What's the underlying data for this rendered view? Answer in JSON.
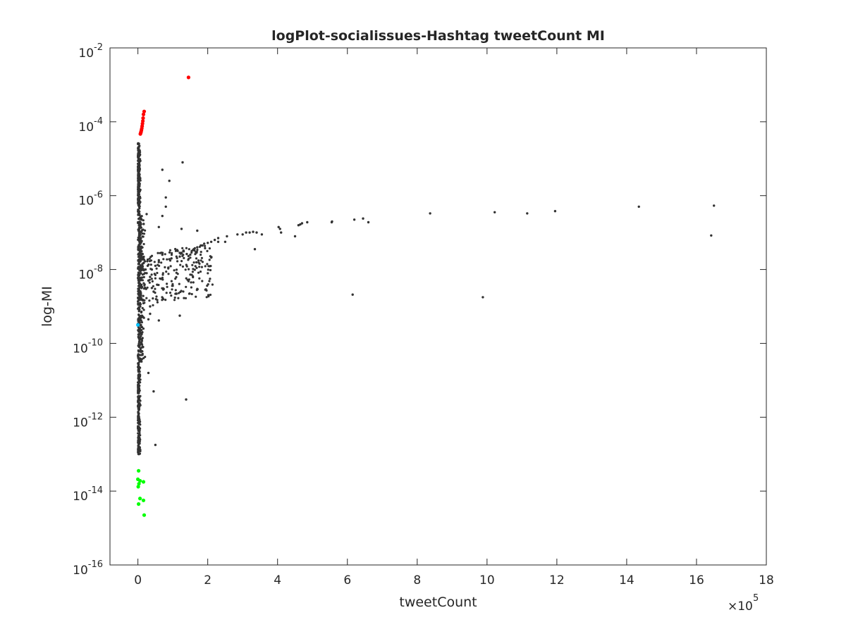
{
  "chart_data": {
    "type": "scatter",
    "title": "logPlot-socialissues-Hashtag tweetCount MI",
    "xlabel": "tweetCount",
    "ylabel": "log-MI",
    "x_multiplier_base": "×10",
    "x_multiplier_exponent": "5",
    "x_scale": "linear",
    "y_scale": "log",
    "xlim": [
      -0.8,
      18
    ],
    "ylim_exponent": [
      -16,
      -2
    ],
    "x_ticks": [
      {
        "value": 0,
        "label": "0"
      },
      {
        "value": 2,
        "label": "2"
      },
      {
        "value": 4,
        "label": "4"
      },
      {
        "value": 6,
        "label": "6"
      },
      {
        "value": 8,
        "label": "8"
      },
      {
        "value": 10,
        "label": "10"
      },
      {
        "value": 12,
        "label": "12"
      },
      {
        "value": 14,
        "label": "14"
      },
      {
        "value": 16,
        "label": "16"
      },
      {
        "value": 18,
        "label": "18"
      }
    ],
    "y_ticks": [
      {
        "exp": -2,
        "base": "10",
        "sup": "-2"
      },
      {
        "exp": -4,
        "base": "10",
        "sup": "-4"
      },
      {
        "exp": -6,
        "base": "10",
        "sup": "-6"
      },
      {
        "exp": -8,
        "base": "10",
        "sup": "-8"
      },
      {
        "exp": -10,
        "base": "10",
        "sup": "-10"
      },
      {
        "exp": -12,
        "base": "10",
        "sup": "-12"
      },
      {
        "exp": -14,
        "base": "10",
        "sup": "-14"
      },
      {
        "exp": -16,
        "base": "10",
        "sup": "-16"
      }
    ],
    "grid": false,
    "legend": "none",
    "series_colors": {
      "top": "#ff0000",
      "bottom": "#00ff00",
      "marker": "#00bfff",
      "rest": "#333333"
    },
    "series": [
      {
        "color": "#ff0000",
        "x": [
          1.45,
          0.18,
          0.16,
          0.15,
          0.14,
          0.13,
          0.12,
          0.11,
          0.1,
          0.09,
          0.08,
          0.07
        ],
        "y_exp": [
          -2.8,
          -3.72,
          -3.8,
          -3.9,
          -3.98,
          -4.05,
          -4.12,
          -4.18,
          -4.23,
          -4.27,
          -4.3,
          -4.33
        ]
      },
      {
        "color": "#00ff00",
        "x": [
          0.02,
          0.0,
          0.06,
          0.16,
          0.03,
          0.01,
          0.06,
          0.16,
          0.02,
          0.18
        ],
        "y_exp": [
          -13.45,
          -13.68,
          -13.72,
          -13.75,
          -13.8,
          -13.88,
          -14.2,
          -14.25,
          -14.35,
          -14.65
        ]
      },
      {
        "color": "#00bfff",
        "x": [
          0.0
        ],
        "y_exp": [
          -9.5
        ]
      },
      {
        "color": "#333333",
        "x": [
          1.28,
          0.9,
          0.7,
          0.8,
          8.37,
          10.22,
          11.15,
          11.95,
          14.35,
          16.5,
          16.42,
          9.88,
          6.15,
          6.6,
          6.45,
          6.2,
          5.55,
          5.56,
          4.85,
          4.7,
          4.65,
          4.6,
          4.5,
          4.07,
          4.03,
          4.1,
          3.55,
          3.4,
          3.3,
          3.2,
          3.1,
          3.0,
          2.85,
          3.35,
          2.5,
          2.55,
          2.3,
          2.3,
          2.2,
          2.1,
          2.0,
          1.9,
          1.8,
          1.7,
          1.6,
          1.3,
          1.2,
          1.25,
          1.5,
          1.4,
          1.2,
          0.96,
          0.9,
          0.6,
          0.6,
          1.25,
          1.7,
          1.85,
          1.2,
          0.6,
          1.38,
          0.45,
          0.3,
          0.35,
          0.4,
          0.3,
          0.35,
          0.25,
          0.22,
          0.28,
          0.6,
          0.5,
          0.4,
          0.7,
          0.45,
          0.3,
          0.35,
          0.25,
          0.8,
          0.7,
          0.5
        ],
        "y_exp": [
          -5.1,
          -5.6,
          -5.3,
          -6.05,
          -6.48,
          -6.45,
          -6.48,
          -6.42,
          -6.3,
          -6.27,
          -7.08,
          -8.75,
          -8.68,
          -6.72,
          -6.62,
          -6.65,
          -6.72,
          -6.7,
          -6.72,
          -6.75,
          -6.78,
          -6.8,
          -7.1,
          -6.9,
          -6.85,
          -7.0,
          -7.05,
          -7.0,
          -6.98,
          -7.0,
          -7.0,
          -7.05,
          -7.05,
          -7.45,
          -7.25,
          -7.1,
          -7.15,
          -7.25,
          -7.2,
          -7.25,
          -7.28,
          -7.3,
          -7.35,
          -7.4,
          -7.45,
          -7.5,
          -7.55,
          -7.55,
          -7.6,
          -7.58,
          -7.65,
          -7.7,
          -7.72,
          -7.75,
          -6.85,
          -6.9,
          -6.95,
          -7.35,
          -9.25,
          -9.38,
          -11.52,
          -11.3,
          -10.8,
          -9.0,
          -8.5,
          -8.3,
          -8.2,
          -8.1,
          -8.0,
          -7.9,
          -7.8,
          -7.9,
          -8.0,
          -7.6,
          -8.6,
          -9.35,
          -9.2,
          -6.5,
          -6.3,
          -6.55,
          -12.75
        ]
      }
    ]
  }
}
